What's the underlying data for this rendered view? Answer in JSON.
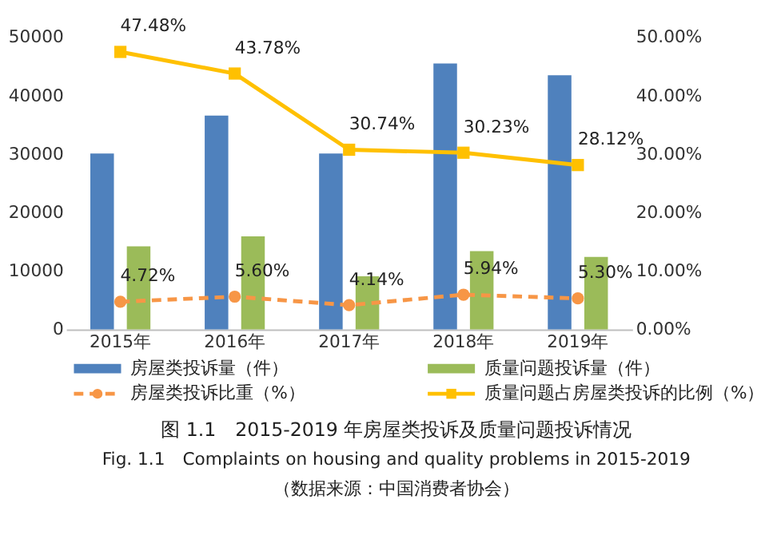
{
  "chart_data": {
    "type": "bar",
    "title": "图 1.1　2015-2019 年房屋类投诉及质量问题投诉情况",
    "subtitle": "Fig. 1.1　Complaints on housing and quality problems in 2015-2019",
    "annotations": [
      "（数据来源：中国消费者协会）"
    ],
    "categories": [
      "2015年",
      "2016年",
      "2017年",
      "2018年",
      "2019年"
    ],
    "series": [
      {
        "name": "房屋类投诉量（件）",
        "color": "#4f81bd",
        "values": [
          30100,
          36600,
          30100,
          45500,
          43500
        ]
      },
      {
        "name": "质量问题投诉量（件）",
        "color": "#9bbb59",
        "values": [
          14200,
          15900,
          9100,
          13400,
          12400
        ]
      },
      {
        "name": "房屋类投诉比重（%）",
        "type": "line",
        "axis": "y2",
        "color": "#f79646",
        "line_style": "dashed",
        "marker": "circle",
        "values": [
          4.72,
          5.6,
          4.14,
          5.94,
          5.3
        ],
        "value_labels": [
          "4.72%",
          "5.60%",
          "4.14%",
          "5.94%",
          "5.30%"
        ]
      },
      {
        "name": "质量问题占房屋类投诉的比例（%）",
        "type": "line",
        "axis": "y2",
        "color": "#ffc000",
        "line_style": "solid",
        "marker": "square",
        "values": [
          47.48,
          43.78,
          30.74,
          30.23,
          28.12
        ],
        "value_labels": [
          "47.48%",
          "43.78%",
          "30.74%",
          "30.23%",
          "28.12%"
        ]
      }
    ],
    "ylim": [
      0,
      50000
    ],
    "yticks": [
      0,
      10000,
      20000,
      30000,
      40000,
      50000
    ],
    "y2lim": [
      0,
      50
    ],
    "y2ticks": [
      {
        "value": 0,
        "label": "0.00%"
      },
      {
        "value": 10,
        "label": "10.00%"
      },
      {
        "value": 20,
        "label": "20.00%"
      },
      {
        "value": 30,
        "label": "30.00%"
      },
      {
        "value": 40,
        "label": "40.00%"
      },
      {
        "value": 50,
        "label": "50.00%"
      }
    ],
    "grid": false,
    "legend": "bottom"
  }
}
